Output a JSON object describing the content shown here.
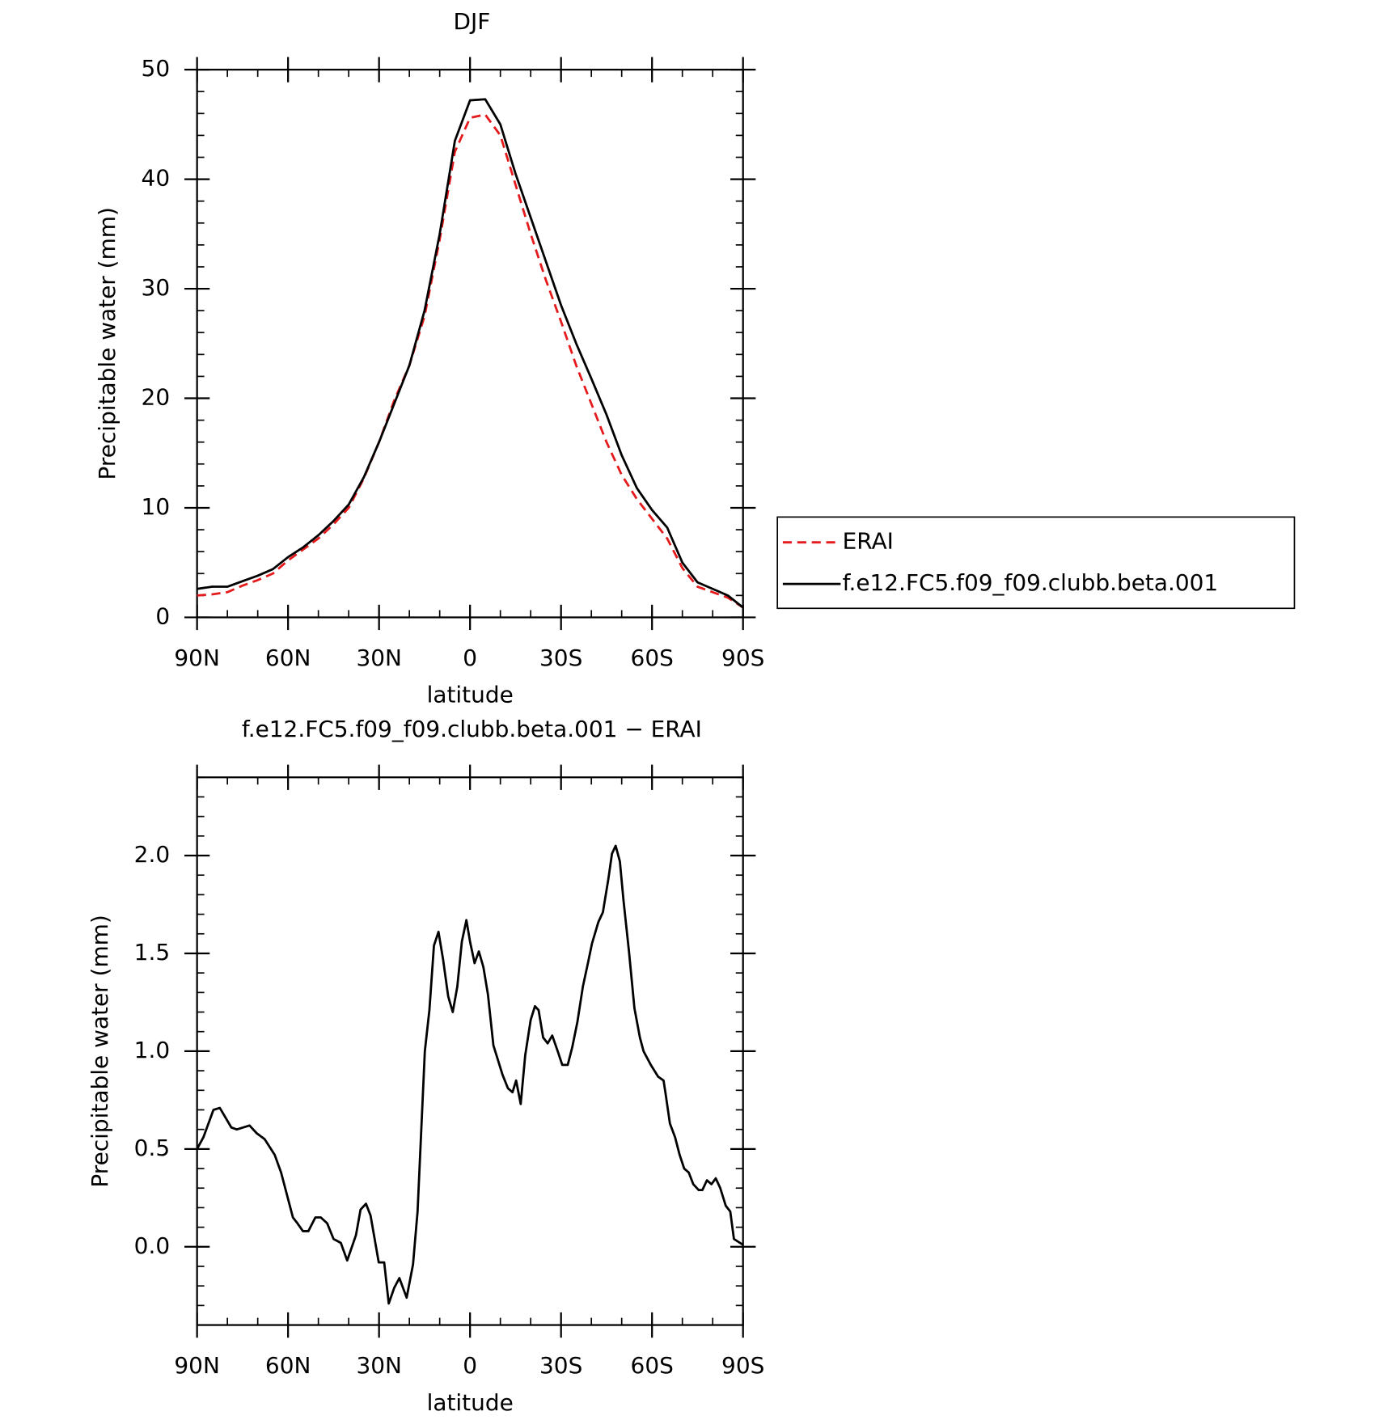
{
  "chart_data": [
    {
      "type": "line",
      "title": "DJF",
      "xlabel": "latitude",
      "ylabel": "Precipitable water (mm)",
      "x": [
        90,
        85,
        80,
        75,
        70,
        65,
        60,
        55,
        50,
        45,
        40,
        35,
        30,
        25,
        20,
        15,
        10,
        5,
        0,
        -5,
        -10,
        -15,
        -20,
        -25,
        -30,
        -35,
        -40,
        -45,
        -50,
        -55,
        -60,
        -65,
        -70,
        -75,
        -80,
        -85,
        -90
      ],
      "series": [
        {
          "name": "ERAI",
          "color": "#e41a1c",
          "linestyle": "dashed",
          "values": [
            2.0,
            2.1,
            2.3,
            2.9,
            3.4,
            4.0,
            5.2,
            6.2,
            7.2,
            8.5,
            10.0,
            12.7,
            16,
            19.8,
            23,
            27.5,
            34.5,
            42.5,
            45.6,
            45.9,
            44,
            39.5,
            35,
            30.8,
            27,
            23,
            19.5,
            16,
            13,
            10.8,
            9,
            7.2,
            4.5,
            2.8,
            2.3,
            1.8,
            0.9
          ]
        },
        {
          "name": "f.e12.FC5.f09_f09.clubb.beta.001",
          "color": "#000000",
          "linestyle": "solid",
          "values": [
            2.6,
            2.8,
            2.8,
            3.3,
            3.8,
            4.4,
            5.5,
            6.4,
            7.5,
            8.8,
            10.3,
            12.8,
            16,
            19.5,
            23,
            28,
            35,
            43.5,
            47.2,
            47.3,
            45,
            40.5,
            36.5,
            32.5,
            28.5,
            25,
            21.8,
            18.5,
            14.8,
            11.8,
            9.8,
            8.2,
            5,
            3.2,
            2.6,
            2.0,
            0.9
          ]
        }
      ],
      "xlim": [
        90,
        -90
      ],
      "xticks": [
        {
          "value": 90,
          "label": "90N"
        },
        {
          "value": 60,
          "label": "60N"
        },
        {
          "value": 30,
          "label": "30N"
        },
        0,
        {
          "value": -30,
          "label": "30S"
        },
        {
          "value": -60,
          "label": "60S"
        },
        {
          "value": -90,
          "label": "90S"
        }
      ],
      "ylim": [
        0,
        50
      ],
      "yticks": [
        0,
        10,
        20,
        30,
        40,
        50
      ],
      "legend": "right"
    },
    {
      "type": "line",
      "title": "f.e12.FC5.f09_f09.clubb.beta.001 − ERAI",
      "xlabel": "latitude",
      "ylabel": "Precipitable water (mm)",
      "x": [
        90,
        87.9,
        84.6,
        82.5,
        78.7,
        76.9,
        72.7,
        70.3,
        67.7,
        64.4,
        62.3,
        58.4,
        56.9,
        55.1,
        53.3,
        51.0,
        49.2,
        47.1,
        45.0,
        42.6,
        40.5,
        37.6,
        36.1,
        34.3,
        32.8,
        30.1,
        28.3,
        26.8,
        25.0,
        23.3,
        20.9,
        18.8,
        17.3,
        14.9,
        13.4,
        11.9,
        10.4,
        8.9,
        7.2,
        5.7,
        4.2,
        2.7,
        1.2,
        0,
        -1.5,
        -2.9,
        -4.4,
        -5.9,
        -7.7,
        -10.7,
        -12.5,
        -14.0,
        -15.2,
        -16.7,
        -18.2,
        -20.0,
        -21.4,
        -22.6,
        -24.1,
        -25.6,
        -27.1,
        -28.9,
        -30.4,
        -32.2,
        -33.7,
        -35.4,
        -37.2,
        -39.0,
        -40.2,
        -42.3,
        -43.8,
        -45.6,
        -46.8,
        -48.0,
        -49.4,
        -50.6,
        -52.4,
        -54.2,
        -56.0,
        -57.2,
        -59.6,
        -62.0,
        -63.8,
        -64.4,
        -65.9,
        -67.6,
        -69.1,
        -70.6,
        -72.1,
        -73.6,
        -75.4,
        -76.6,
        -78.1,
        -79.6,
        -81.0,
        -82.5,
        -84.3,
        -85.8,
        -87.0,
        -90
      ],
      "series": [
        {
          "color": "#000000",
          "linestyle": "solid",
          "values": [
            0.5,
            0.56,
            0.7,
            0.71,
            0.61,
            0.6,
            0.62,
            0.58,
            0.55,
            0.47,
            0.38,
            0.15,
            0.12,
            0.08,
            0.08,
            0.15,
            0.15,
            0.12,
            0.04,
            0.02,
            -0.07,
            0.06,
            0.19,
            0.22,
            0.16,
            -0.08,
            -0.08,
            -0.29,
            -0.21,
            -0.16,
            -0.26,
            -0.09,
            0.18,
            1.0,
            1.21,
            1.54,
            1.61,
            1.47,
            1.28,
            1.2,
            1.33,
            1.56,
            1.67,
            1.56,
            1.45,
            1.51,
            1.43,
            1.29,
            1.03,
            0.88,
            0.81,
            0.79,
            0.85,
            0.73,
            0.98,
            1.16,
            1.23,
            1.21,
            1.07,
            1.04,
            1.08,
            1.0,
            0.93,
            0.93,
            1.02,
            1.15,
            1.33,
            1.46,
            1.55,
            1.66,
            1.71,
            1.88,
            2.01,
            2.05,
            1.97,
            1.77,
            1.51,
            1.22,
            1.07,
            1.0,
            0.93,
            0.87,
            0.85,
            0.79,
            0.63,
            0.56,
            0.47,
            0.4,
            0.38,
            0.32,
            0.29,
            0.29,
            0.34,
            0.32,
            0.35,
            0.3,
            0.21,
            0.18,
            0.04,
            0.01
          ]
        }
      ],
      "xlim": [
        90,
        -90
      ],
      "xticks": [
        {
          "value": 90,
          "label": "90N"
        },
        {
          "value": 60,
          "label": "60N"
        },
        {
          "value": 30,
          "label": "30N"
        },
        0,
        {
          "value": -30,
          "label": "30S"
        },
        {
          "value": -60,
          "label": "60S"
        },
        {
          "value": -90,
          "label": "90S"
        }
      ],
      "ylim": [
        -0.4,
        2.4
      ],
      "yticks": [
        {
          "value": 0,
          "label": "0.0"
        },
        0.5,
        {
          "value": 1,
          "label": "1.0"
        },
        1.5,
        {
          "value": 2,
          "label": "2.0"
        }
      ]
    }
  ]
}
